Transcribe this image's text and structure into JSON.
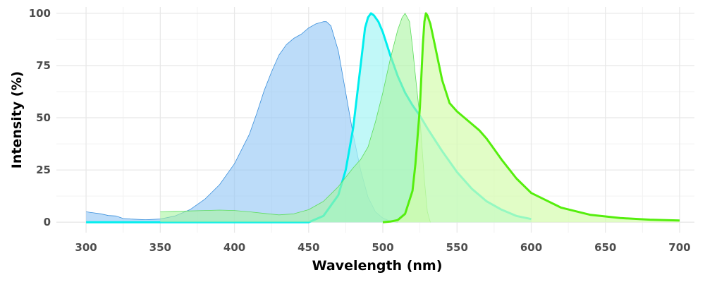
{
  "chart_data": {
    "type": "area",
    "xlabel": "Wavelength (nm)",
    "ylabel": "Intensity (%)",
    "xlim": [
      280,
      710
    ],
    "ylim": [
      -5,
      103
    ],
    "xticks": [
      300,
      350,
      400,
      450,
      500,
      550,
      600,
      650,
      700
    ],
    "yticks": [
      0,
      25,
      50,
      75,
      100
    ],
    "grid": true,
    "series": [
      {
        "role": "excitation",
        "fill": "#8fc4f5",
        "stroke": "#3a8fdb",
        "x": [
          300,
          305,
          310,
          315,
          320,
          325,
          330,
          340,
          350,
          360,
          370,
          380,
          390,
          400,
          410,
          415,
          420,
          425,
          430,
          435,
          440,
          445,
          450,
          455,
          460,
          462,
          465,
          470,
          475,
          480,
          485,
          490,
          495,
          500,
          505,
          510
        ],
        "y": [
          5,
          4.5,
          4,
          3.2,
          3,
          1.8,
          1.5,
          1.2,
          1.5,
          3,
          6,
          11,
          18,
          28,
          42,
          52,
          63,
          72,
          80,
          85,
          88,
          90,
          93,
          95,
          96,
          96,
          94,
          82,
          62,
          42,
          25,
          12,
          5,
          2,
          0.5,
          0
        ]
      },
      {
        "role": "emission",
        "fill": "#a6f5f5",
        "stroke": "#00eeee",
        "x": [
          300,
          450,
          460,
          470,
          475,
          480,
          485,
          488,
          490,
          492,
          494,
          497,
          500,
          505,
          510,
          515,
          520,
          525,
          530,
          540,
          550,
          560,
          570,
          580,
          590,
          600
        ],
        "y": [
          0,
          0,
          3,
          13,
          25,
          45,
          75,
          93,
          98,
          100,
          99,
          96,
          91,
          80,
          70,
          62,
          56,
          51,
          45,
          34,
          24,
          16,
          10,
          6,
          3,
          1.5
        ]
      },
      {
        "role": "excitation",
        "fill": "#a8f5a0",
        "stroke": "#5edc5e",
        "x": [
          350,
          360,
          370,
          380,
          390,
          400,
          410,
          420,
          430,
          440,
          450,
          460,
          470,
          480,
          485,
          490,
          495,
          500,
          505,
          510,
          513,
          515,
          518,
          520,
          522,
          525,
          528,
          530,
          532
        ],
        "y": [
          5,
          5.2,
          5.4,
          5.6,
          5.8,
          5.6,
          5,
          4.2,
          3.5,
          4,
          6,
          10,
          17,
          26,
          30,
          36,
          48,
          62,
          78,
          92,
          98,
          100,
          96,
          84,
          70,
          50,
          20,
          5,
          0
        ]
      },
      {
        "role": "emission",
        "fill": "#d4fcae",
        "stroke": "#55ee0d",
        "x": [
          500,
          505,
          510,
          515,
          520,
          522,
          525,
          527,
          528,
          529,
          530,
          532,
          535,
          540,
          545,
          550,
          555,
          560,
          565,
          570,
          575,
          580,
          590,
          600,
          620,
          640,
          660,
          680,
          700
        ],
        "y": [
          0,
          0.3,
          1,
          4,
          15,
          28,
          55,
          85,
          96,
          100,
          99,
          95,
          85,
          68,
          57,
          53,
          50,
          47,
          44,
          40,
          35,
          30,
          21,
          14,
          7,
          3.5,
          2,
          1.2,
          0.8
        ]
      }
    ]
  }
}
